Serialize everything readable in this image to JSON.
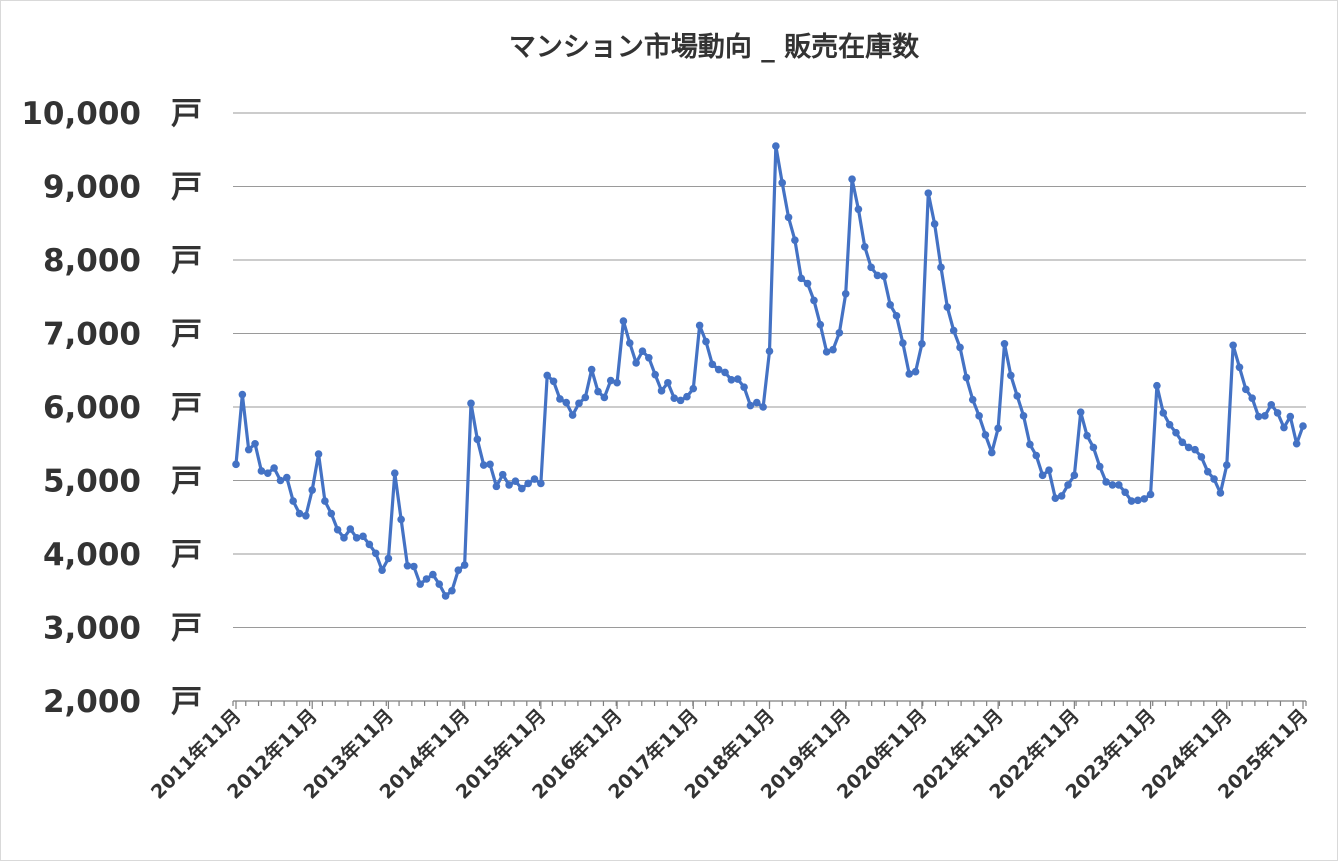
{
  "chart_data": {
    "type": "line",
    "title": "マンション市場動向 _ 販売在庫数",
    "xlabel": "",
    "ylabel": "",
    "ylim": [
      2000,
      10000
    ],
    "ytick_values": [
      10000,
      9000,
      8000,
      7000,
      6000,
      5000,
      4000,
      3000,
      2000
    ],
    "ytick_labels": [
      "10,000",
      "9,000",
      "8,000",
      "7,000",
      "6,000",
      "5,000",
      "4,000",
      "3,000",
      "2,000"
    ],
    "y_unit": "戸",
    "x_tick_labels": [
      "2011年11月",
      "2012年11月",
      "2013年11月",
      "2014年11月",
      "2015年11月",
      "2016年11月",
      "2017年11月",
      "2018年11月",
      "2019年11月",
      "2020年11月",
      "2021年11月",
      "2022年11月",
      "2023年11月",
      "2024年11月",
      "2025年11月"
    ],
    "x_start": "2011-11",
    "x_end": "2025-11",
    "grid": true,
    "legend": "none",
    "series": [
      {
        "color": "#4472c4",
        "values": [
          5220,
          6170,
          5420,
          5500,
          5130,
          5100,
          5170,
          5000,
          5040,
          4720,
          4550,
          4520,
          4870,
          5360,
          4720,
          4550,
          4330,
          4220,
          4340,
          4220,
          4240,
          4130,
          4010,
          3780,
          3940,
          5100,
          4470,
          3840,
          3830,
          3590,
          3660,
          3720,
          3590,
          3430,
          3500,
          3780,
          3850,
          6050,
          5560,
          5210,
          5220,
          4920,
          5080,
          4940,
          4990,
          4890,
          4960,
          5020,
          4960,
          6430,
          6350,
          6110,
          6060,
          5890,
          6050,
          6130,
          6510,
          6210,
          6130,
          6360,
          6330,
          7170,
          6870,
          6600,
          6760,
          6670,
          6440,
          6220,
          6330,
          6120,
          6090,
          6140,
          6250,
          7110,
          6890,
          6580,
          6510,
          6470,
          6370,
          6380,
          6270,
          6020,
          6060,
          6000,
          6760,
          9550,
          9050,
          8580,
          8270,
          7750,
          7680,
          7450,
          7120,
          6750,
          6780,
          7010,
          7540,
          9100,
          8690,
          8180,
          7900,
          7790,
          7780,
          7390,
          7240,
          6870,
          6450,
          6480,
          6860,
          8910,
          8490,
          7900,
          7360,
          7040,
          6810,
          6400,
          6100,
          5880,
          5620,
          5380,
          5710,
          6860,
          6430,
          6150,
          5880,
          5490,
          5340,
          5070,
          5140,
          4760,
          4790,
          4940,
          5070,
          5930,
          5610,
          5450,
          5190,
          4980,
          4940,
          4940,
          4840,
          4720,
          4730,
          4750,
          4810,
          6290,
          5920,
          5760,
          5650,
          5520,
          5450,
          5420,
          5320,
          5120,
          5020,
          4830,
          5210,
          6840,
          6540,
          6240,
          6120,
          5870,
          5880,
          6030,
          5920,
          5720,
          5870,
          5500,
          5740
        ]
      }
    ]
  }
}
